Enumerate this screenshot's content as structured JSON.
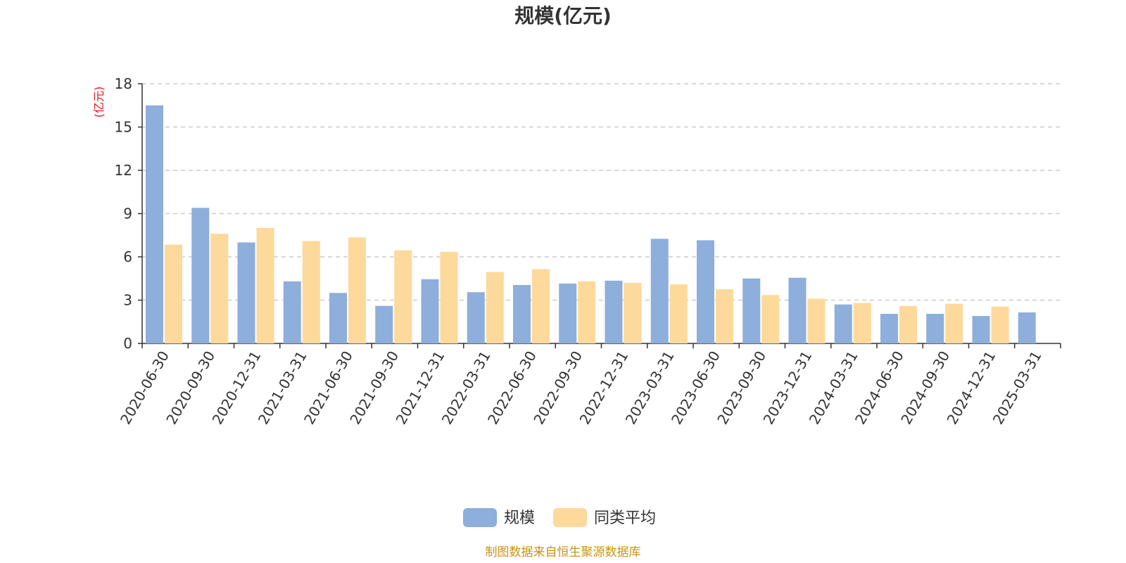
{
  "chart_data": {
    "type": "bar",
    "title": "规模(亿元)",
    "ylabel": "(亿元)",
    "ylim": [
      0,
      18
    ],
    "yticks": [
      0,
      3,
      6,
      9,
      12,
      15,
      18
    ],
    "grid": true,
    "legend_position": "bottom-center",
    "categories": [
      "2020-06-30",
      "2020-09-30",
      "2020-12-31",
      "2021-03-31",
      "2021-06-30",
      "2021-09-30",
      "2021-12-31",
      "2022-03-31",
      "2022-06-30",
      "2022-09-30",
      "2022-12-31",
      "2023-03-31",
      "2023-06-30",
      "2023-09-30",
      "2023-12-31",
      "2024-03-31",
      "2024-06-30",
      "2024-09-30",
      "2024-12-31",
      "2025-03-31"
    ],
    "series": [
      {
        "name": "规模",
        "color": "#8eaedb",
        "values": [
          16.5,
          9.4,
          7.0,
          4.3,
          3.5,
          2.6,
          4.45,
          3.55,
          4.05,
          4.15,
          4.35,
          7.25,
          7.15,
          4.5,
          4.55,
          2.7,
          2.05,
          2.05,
          1.9,
          2.15
        ]
      },
      {
        "name": "同类平均",
        "color": "#fdd99b",
        "values": [
          6.85,
          7.6,
          8.0,
          7.1,
          7.35,
          6.45,
          6.35,
          4.95,
          5.15,
          4.3,
          4.2,
          4.1,
          3.75,
          3.35,
          3.1,
          2.8,
          2.6,
          2.75,
          2.55,
          null
        ]
      }
    ],
    "unit_color": "#e8101a",
    "source_color": "#c8921a"
  },
  "source_text": "制图数据来自恒生聚源数据库"
}
